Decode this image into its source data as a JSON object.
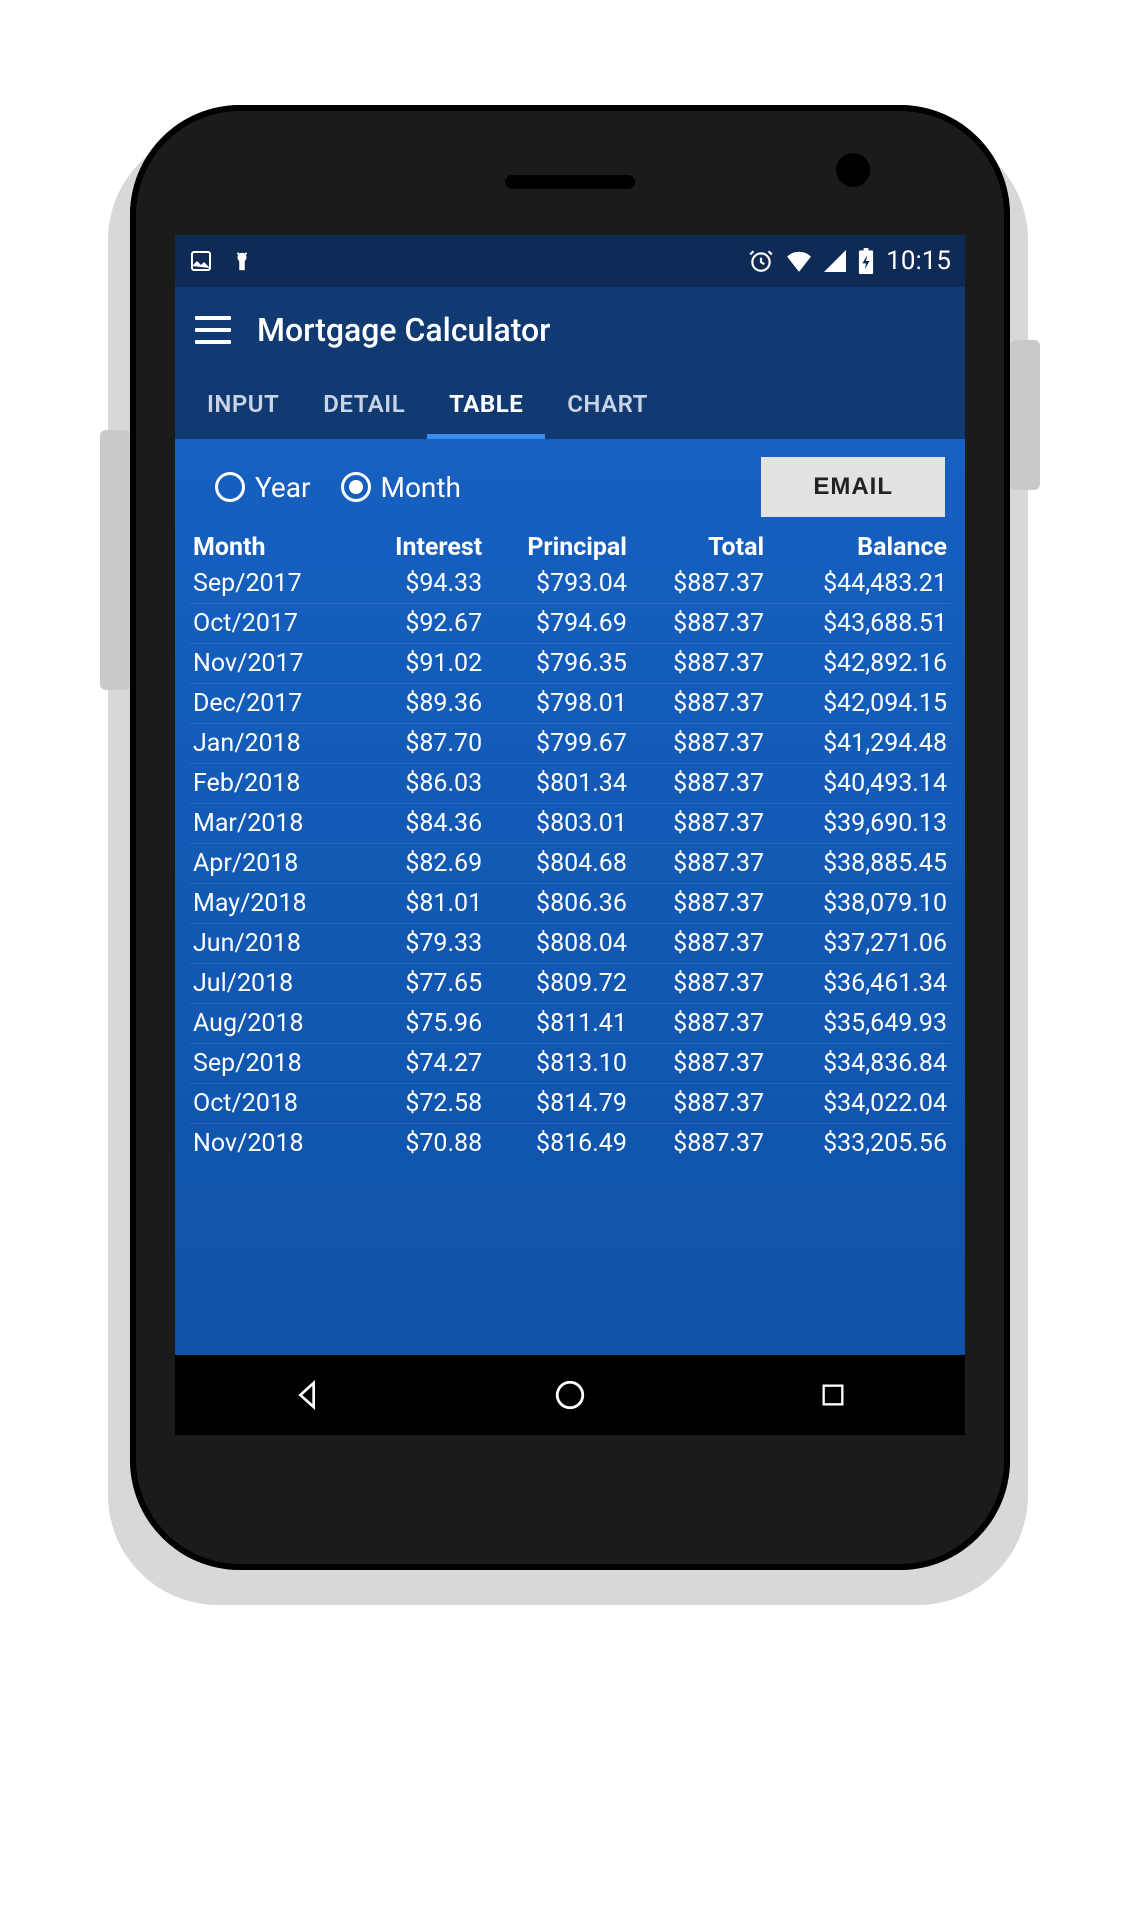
{
  "colors": {
    "status_bg": "#0f2a54",
    "action_bg": "#123a72",
    "content_top": "#1660c0",
    "content_bottom": "#0f52a8",
    "tab_indicator": "#3b8cf2",
    "email_btn_bg": "#e2e2e2",
    "text": "#ffffff"
  },
  "status": {
    "time": "10:15"
  },
  "header": {
    "title": "Mortgage Calculator"
  },
  "tabs": {
    "items": [
      "INPUT",
      "DETAIL",
      "TABLE",
      "CHART"
    ],
    "active_index": 2
  },
  "controls": {
    "radio_year": "Year",
    "radio_month": "Month",
    "selected": "month",
    "email_label": "EMAIL"
  },
  "table": {
    "columns": [
      "Month",
      "Interest",
      "Principal",
      "Total",
      "Balance"
    ],
    "rows": [
      [
        "Sep/2017",
        "$94.33",
        "$793.04",
        "$887.37",
        "$44,483.21"
      ],
      [
        "Oct/2017",
        "$92.67",
        "$794.69",
        "$887.37",
        "$43,688.51"
      ],
      [
        "Nov/2017",
        "$91.02",
        "$796.35",
        "$887.37",
        "$42,892.16"
      ],
      [
        "Dec/2017",
        "$89.36",
        "$798.01",
        "$887.37",
        "$42,094.15"
      ],
      [
        "Jan/2018",
        "$87.70",
        "$799.67",
        "$887.37",
        "$41,294.48"
      ],
      [
        "Feb/2018",
        "$86.03",
        "$801.34",
        "$887.37",
        "$40,493.14"
      ],
      [
        "Mar/2018",
        "$84.36",
        "$803.01",
        "$887.37",
        "$39,690.13"
      ],
      [
        "Apr/2018",
        "$82.69",
        "$804.68",
        "$887.37",
        "$38,885.45"
      ],
      [
        "May/2018",
        "$81.01",
        "$806.36",
        "$887.37",
        "$38,079.10"
      ],
      [
        "Jun/2018",
        "$79.33",
        "$808.04",
        "$887.37",
        "$37,271.06"
      ],
      [
        "Jul/2018",
        "$77.65",
        "$809.72",
        "$887.37",
        "$36,461.34"
      ],
      [
        "Aug/2018",
        "$75.96",
        "$811.41",
        "$887.37",
        "$35,649.93"
      ],
      [
        "Sep/2018",
        "$74.27",
        "$813.10",
        "$887.37",
        "$34,836.84"
      ],
      [
        "Oct/2018",
        "$72.58",
        "$814.79",
        "$887.37",
        "$34,022.04"
      ],
      [
        "Nov/2018",
        "$70.88",
        "$816.49",
        "$887.37",
        "$33,205.56"
      ]
    ]
  }
}
